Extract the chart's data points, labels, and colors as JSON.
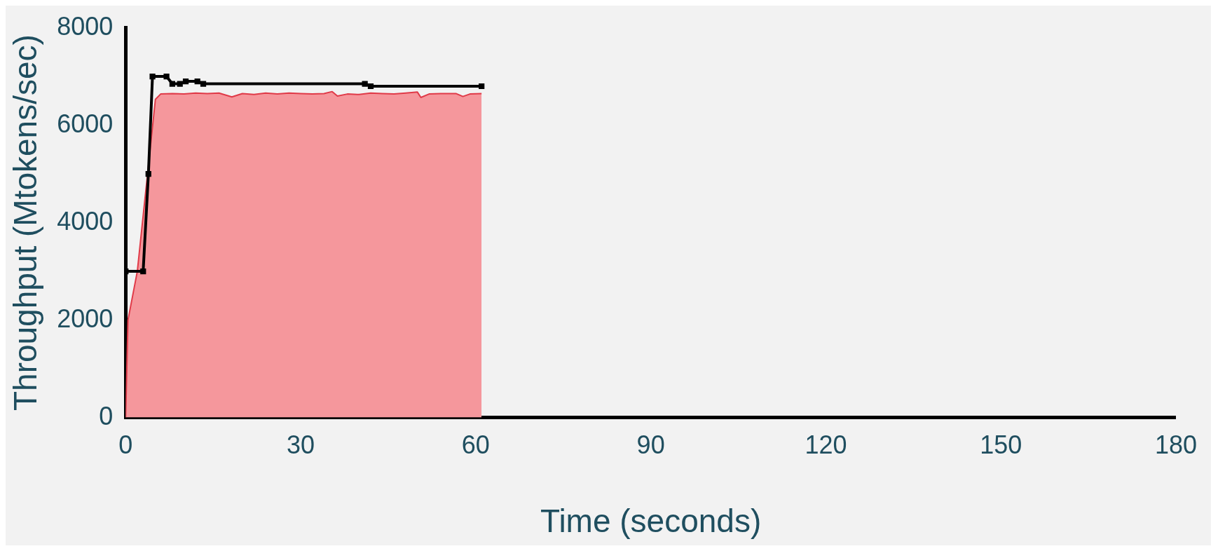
{
  "chart_data": {
    "type": "line",
    "xlabel": "Time (seconds)",
    "ylabel": "Throughput (Mtokens/sec)",
    "xlim": [
      0,
      180
    ],
    "xticks": [
      0,
      30,
      60,
      90,
      120,
      150,
      180
    ],
    "ylim": [
      0,
      8000
    ],
    "yticks": [
      0,
      2000,
      4000,
      6000,
      8000
    ],
    "grid": false,
    "legend": false,
    "series": [
      {
        "type": "area",
        "color": "#f5979c",
        "x": [
          0,
          0.4,
          2,
          5.1,
          6,
          8,
          10,
          12,
          14,
          16,
          18.2,
          20,
          22,
          24,
          26,
          28,
          30,
          32,
          34,
          35.4,
          36.3,
          38,
          40,
          42,
          44,
          46,
          48,
          50,
          50.6,
          52,
          54,
          56.6,
          57.8,
          59,
          61
        ],
        "values": [
          0,
          2000,
          3000,
          6530,
          6640,
          6650,
          6640,
          6660,
          6650,
          6660,
          6580,
          6650,
          6630,
          6660,
          6640,
          6660,
          6650,
          6640,
          6650,
          6690,
          6600,
          6640,
          6630,
          6660,
          6650,
          6640,
          6660,
          6680,
          6570,
          6640,
          6650,
          6650,
          6590,
          6640,
          6650
        ]
      },
      {
        "color": "#000000",
        "marker": "square",
        "x": [
          0,
          3,
          3.9,
          4.6,
          7,
          8,
          9.3,
          10.3,
          12.3,
          13.3,
          41,
          42,
          61
        ],
        "values": [
          3000,
          3000,
          5000,
          7000,
          7000,
          6850,
          6850,
          6900,
          6900,
          6850,
          6850,
          6800,
          6800
        ]
      }
    ]
  }
}
